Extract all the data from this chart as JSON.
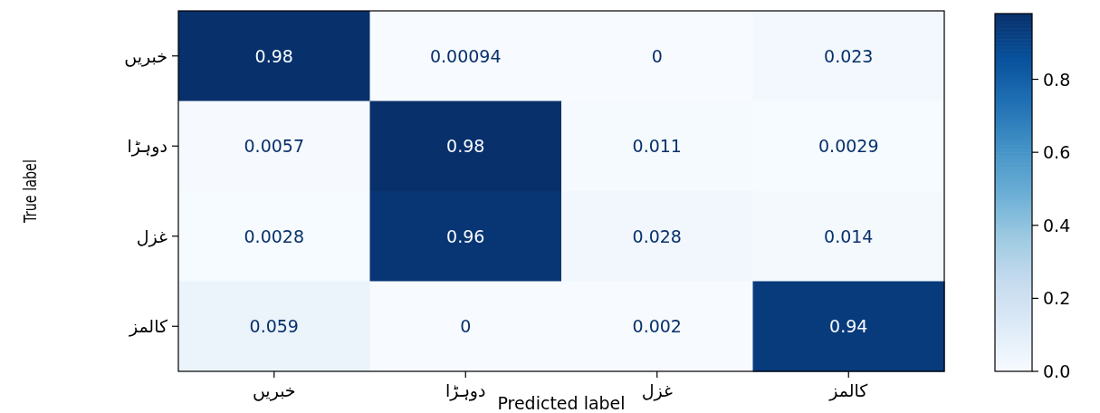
{
  "chart_data": {
    "type": "heatmap",
    "xlabel": "Predicted label",
    "ylabel": "True label",
    "categories": [
      "خبریں",
      "دوہڑا",
      "غزل",
      "کالمز"
    ],
    "y_categories": [
      "خبریں",
      "دوہڑا",
      "غزل",
      "کالمز"
    ],
    "cells": [
      [
        0.98,
        0.00094,
        0,
        0.023
      ],
      [
        0.0057,
        0.98,
        0.011,
        0.0029
      ],
      [
        0.0028,
        0.96,
        0.028,
        0.014
      ],
      [
        0.059,
        0,
        0.002,
        0.94
      ]
    ],
    "data_labels": true,
    "clim": [
      0,
      0.98
    ],
    "cticks": [
      {
        "value": 0,
        "label": "0.0"
      },
      {
        "value": 0.2,
        "label": "0.2"
      },
      {
        "value": 0.4,
        "label": "0.4"
      },
      {
        "value": 0.6,
        "label": "0.6"
      },
      {
        "value": 0.8,
        "label": "0.8"
      }
    ]
  }
}
